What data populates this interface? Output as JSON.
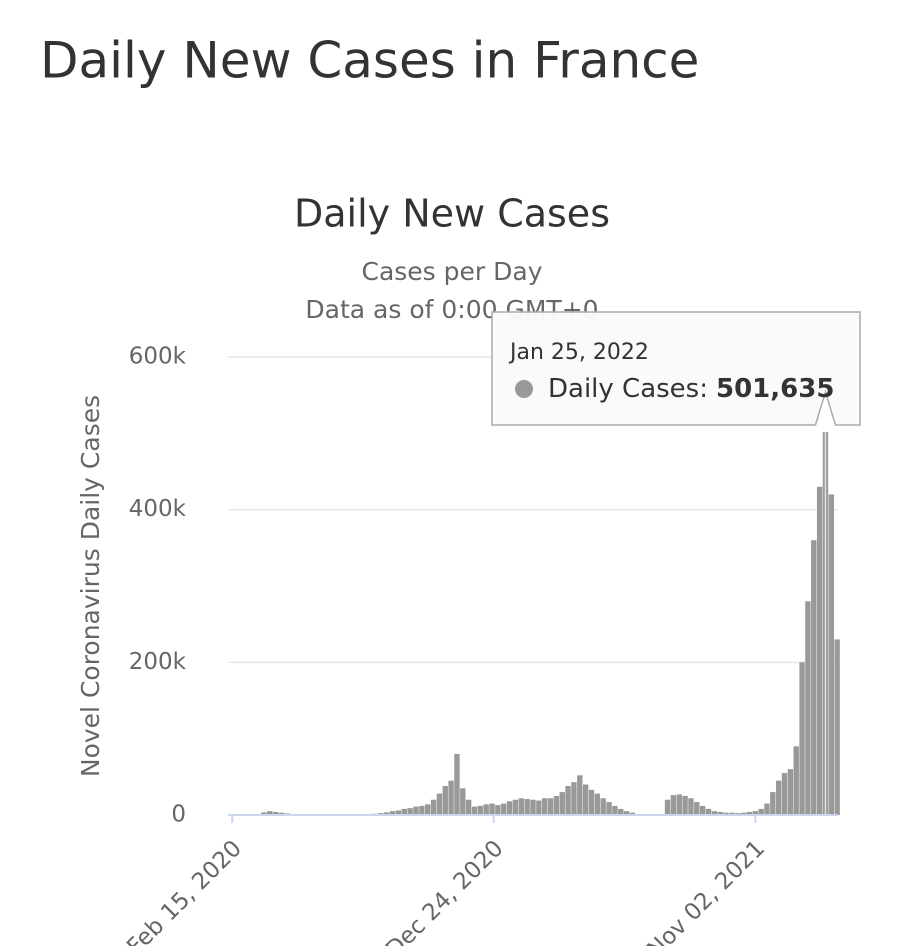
{
  "page_title": "Daily New Cases in France",
  "chart_data": {
    "type": "bar",
    "title": "Daily New Cases",
    "subtitle": [
      "Cases per Day",
      "Data as of 0:00 GMT+0"
    ],
    "y_label": "Novel Coronavirus Daily Cases",
    "color": "#999999",
    "x": [
      "2020-02-11",
      "2020-02-18",
      "2020-02-25",
      "2020-03-03",
      "2020-03-10",
      "2020-03-17",
      "2020-03-24",
      "2020-03-31",
      "2020-04-07",
      "2020-04-14",
      "2020-04-21",
      "2020-04-28",
      "2020-05-05",
      "2020-05-12",
      "2020-05-19",
      "2020-05-26",
      "2020-06-02",
      "2020-06-09",
      "2020-06-16",
      "2020-06-23",
      "2020-06-30",
      "2020-07-07",
      "2020-07-14",
      "2020-07-21",
      "2020-07-28",
      "2020-08-04",
      "2020-08-11",
      "2020-08-18",
      "2020-08-25",
      "2020-09-01",
      "2020-09-08",
      "2020-09-15",
      "2020-09-22",
      "2020-09-29",
      "2020-10-06",
      "2020-10-13",
      "2020-10-20",
      "2020-10-27",
      "2020-11-03",
      "2020-11-10",
      "2020-11-17",
      "2020-11-24",
      "2020-12-01",
      "2020-12-08",
      "2020-12-15",
      "2020-12-22",
      "2020-12-29",
      "2021-01-05",
      "2021-01-12",
      "2021-01-19",
      "2021-01-26",
      "2021-02-02",
      "2021-02-09",
      "2021-02-16",
      "2021-02-23",
      "2021-03-02",
      "2021-03-09",
      "2021-03-16",
      "2021-03-23",
      "2021-03-30",
      "2021-04-06",
      "2021-04-13",
      "2021-04-20",
      "2021-04-27",
      "2021-05-04",
      "2021-05-11",
      "2021-05-18",
      "2021-05-25",
      "2021-06-01",
      "2021-06-08",
      "2021-06-15",
      "2021-06-22",
      "2021-06-29",
      "2021-07-06",
      "2021-07-13",
      "2021-07-20",
      "2021-07-27",
      "2021-08-03",
      "2021-08-10",
      "2021-08-17",
      "2021-08-24",
      "2021-08-31",
      "2021-09-07",
      "2021-09-14",
      "2021-09-21",
      "2021-09-28",
      "2021-10-05",
      "2021-10-12",
      "2021-10-19",
      "2021-10-26",
      "2021-11-02",
      "2021-11-09",
      "2021-11-16",
      "2021-11-23",
      "2021-11-30",
      "2021-12-07",
      "2021-12-14",
      "2021-12-21",
      "2021-12-28",
      "2022-01-04",
      "2022-01-11",
      "2022-01-18",
      "2022-01-25",
      "2022-02-01",
      "2022-02-08"
    ],
    "values": [
      0,
      0,
      0,
      0,
      300,
      1200,
      3500,
      5000,
      4000,
      3000,
      2000,
      1000,
      500,
      300,
      300,
      200,
      300,
      400,
      400,
      400,
      500,
      600,
      700,
      900,
      1200,
      1600,
      2500,
      3500,
      5000,
      6000,
      8000,
      9000,
      11000,
      12000,
      14000,
      20000,
      28000,
      38000,
      45000,
      80000,
      35000,
      20000,
      11000,
      12000,
      14000,
      15000,
      13000,
      15000,
      18000,
      20000,
      22000,
      21000,
      20000,
      19000,
      22000,
      22000,
      25000,
      30000,
      38000,
      43000,
      52000,
      40000,
      33000,
      28000,
      22000,
      17000,
      12000,
      8000,
      5000,
      3000,
      1000,
      0,
      0,
      0,
      0,
      20000,
      26000,
      27000,
      25000,
      22000,
      17000,
      12000,
      8000,
      5000,
      4000,
      3000,
      3000,
      2500,
      3000,
      4000,
      5000,
      8000,
      15000,
      30000,
      45000,
      55000,
      60000,
      90000,
      200000,
      280000,
      360000,
      430000,
      501635,
      420000,
      230000
    ],
    "xlim": [
      "2020-02-10",
      "2022-02-09"
    ],
    "xticks": [
      {
        "value": "2020-02-15",
        "label": "Feb 15, 2020"
      },
      {
        "value": "2020-12-24",
        "label": "Dec 24, 2020"
      },
      {
        "value": "2021-11-02",
        "label": "Nov 02, 2021"
      }
    ],
    "ylim": [
      0,
      600000
    ],
    "yticks": [
      0,
      {
        "value": 200000,
        "label": "200k"
      },
      {
        "value": 400000,
        "label": "400k"
      },
      {
        "value": 600000,
        "label": "600k"
      }
    ],
    "grid": true,
    "tooltip": {
      "date": "Jan 25, 2022",
      "label": "Daily Cases:",
      "value": 501635,
      "value_label": "501,635"
    }
  }
}
